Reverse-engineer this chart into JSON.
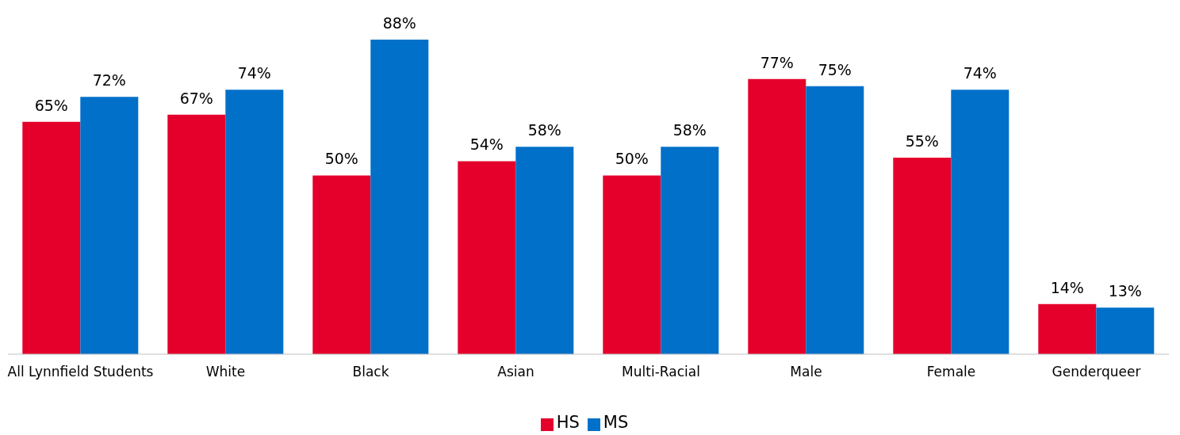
{
  "chart_data": {
    "type": "bar",
    "categories": [
      "All Lynnfield Students",
      "White",
      "Black",
      "Asian",
      "Multi-Racial",
      "Male",
      "Female",
      "Genderqueer"
    ],
    "series": [
      {
        "name": "HS",
        "color": "#e4002b",
        "values": [
          65,
          67,
          50,
          54,
          50,
          77,
          55,
          14
        ],
        "value_labels": [
          "65%",
          "67%",
          "50%",
          "54%",
          "50%",
          "77%",
          "55%",
          "14%"
        ]
      },
      {
        "name": "MS",
        "color": "#0070c9",
        "values": [
          72,
          74,
          88,
          58,
          58,
          75,
          74,
          13
        ],
        "value_labels": [
          "72%",
          "74%",
          "88%",
          "58%",
          "58%",
          "75%",
          "74%",
          "13%"
        ]
      }
    ],
    "legend": "bottom",
    "grid": false
  }
}
